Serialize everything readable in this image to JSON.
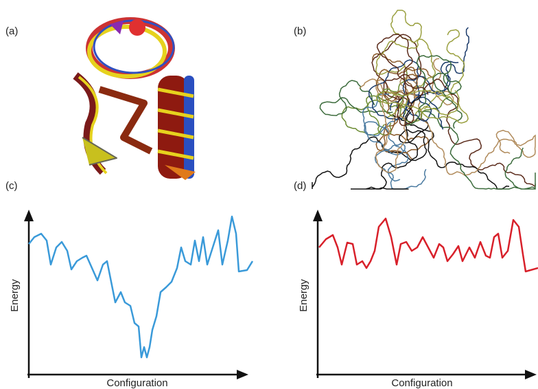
{
  "panels": [
    {
      "label": "(a)"
    },
    {
      "label": "(b)"
    },
    {
      "label": "(c)",
      "y_axis_label": "Energy",
      "x_axis_label": "Configuration"
    },
    {
      "label": "(d)",
      "y_axis_label": "Energy",
      "x_axis_label": "Configuration"
    }
  ]
}
